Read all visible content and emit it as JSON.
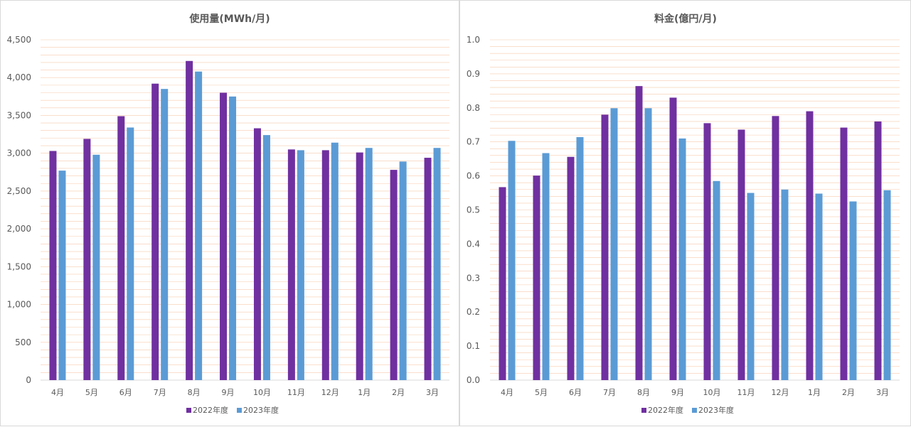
{
  "colors": {
    "series2022": "#7030A0",
    "series2023": "#5B9BD5",
    "grid": "#F8CBAD",
    "text": "#595959"
  },
  "chart_data": [
    {
      "type": "bar",
      "title": "使用量(MWh/月)",
      "categories": [
        "4月",
        "5月",
        "6月",
        "7月",
        "8月",
        "9月",
        "10月",
        "11月",
        "12月",
        "1月",
        "2月",
        "3月"
      ],
      "series": [
        {
          "name": "2022年度",
          "values": [
            3030,
            3190,
            3490,
            3920,
            4220,
            3800,
            3330,
            3050,
            3040,
            3010,
            2780,
            2940
          ]
        },
        {
          "name": "2023年度",
          "values": [
            2770,
            2980,
            3340,
            3850,
            4080,
            3750,
            3240,
            3040,
            3140,
            3070,
            2890,
            3070
          ]
        }
      ],
      "yticks": [
        "0",
        "500",
        "1,000",
        "1,500",
        "2,000",
        "2,500",
        "3,000",
        "3,500",
        "4,000",
        "4,500"
      ],
      "ylim": [
        0,
        4500
      ],
      "major_step": 500,
      "minor_step": 100,
      "legend": "bottom"
    },
    {
      "type": "bar",
      "title": "料金(億円/月)",
      "categories": [
        "4月",
        "5月",
        "6月",
        "7月",
        "8月",
        "9月",
        "10月",
        "11月",
        "12月",
        "1月",
        "2月",
        "3月"
      ],
      "series": [
        {
          "name": "2022年度",
          "values": [
            0.567,
            0.601,
            0.656,
            0.78,
            0.864,
            0.83,
            0.755,
            0.736,
            0.776,
            0.79,
            0.742,
            0.76
          ]
        },
        {
          "name": "2023年度",
          "values": [
            0.703,
            0.667,
            0.714,
            0.799,
            0.799,
            0.71,
            0.585,
            0.55,
            0.56,
            0.548,
            0.525,
            0.558
          ]
        }
      ],
      "yticks": [
        "0.0",
        "0.1",
        "0.2",
        "0.3",
        "0.4",
        "0.5",
        "0.6",
        "0.7",
        "0.8",
        "0.9",
        "1.0"
      ],
      "ylim": [
        0,
        1.0
      ],
      "major_step": 0.1,
      "minor_step": 0.02,
      "legend": "bottom"
    }
  ]
}
